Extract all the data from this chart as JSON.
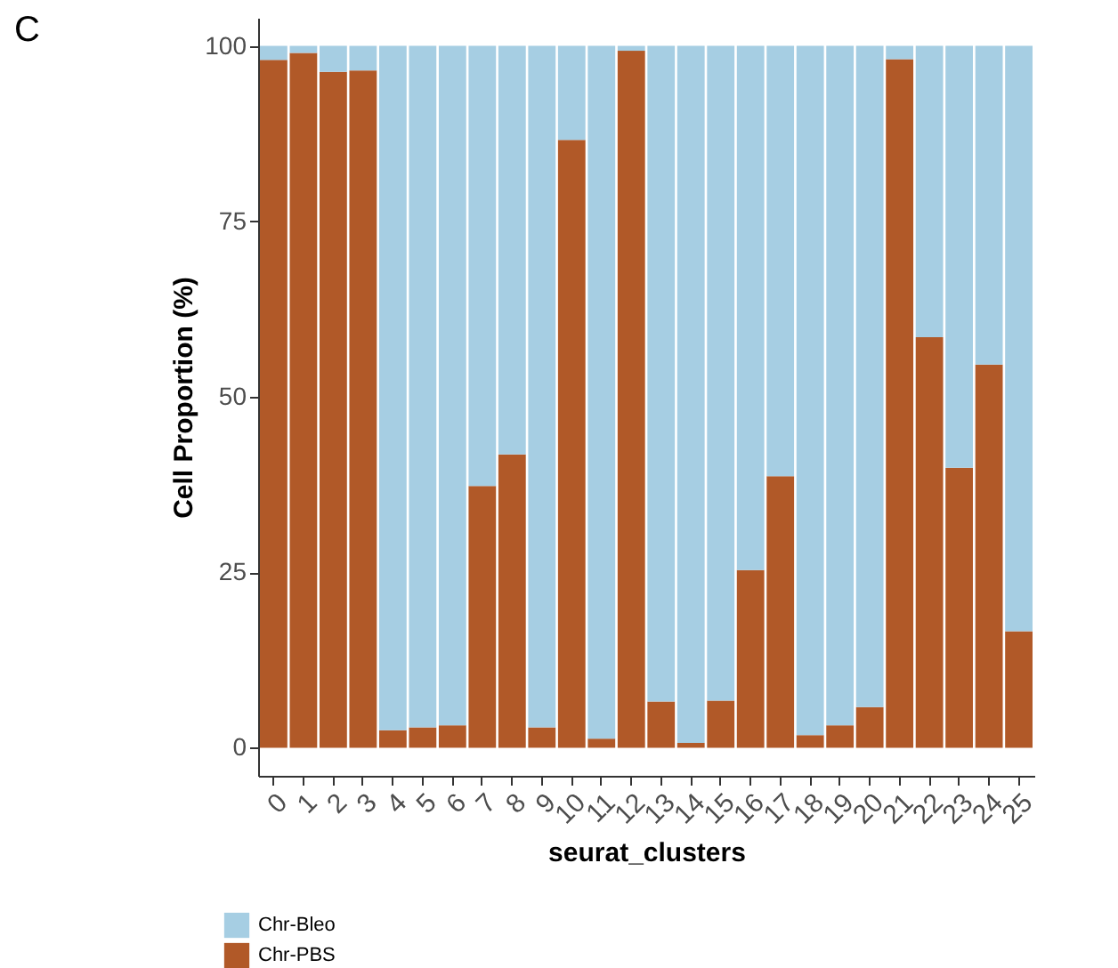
{
  "chart_data": {
    "type": "bar",
    "stacked": true,
    "xlabel": "seurat_clusters",
    "ylabel": "Cell Proportion (%)",
    "annotations": [
      "C"
    ],
    "categories": [
      "0",
      "1",
      "2",
      "3",
      "4",
      "5",
      "6",
      "7",
      "8",
      "9",
      "10",
      "11",
      "12",
      "13",
      "14",
      "15",
      "16",
      "17",
      "18",
      "19",
      "20",
      "21",
      "22",
      "23",
      "24",
      "25"
    ],
    "series": [
      {
        "name": "Chr-PBS",
        "color": "#b15928",
        "values": [
          98,
          99,
          96.3,
          96.5,
          2.5,
          2.9,
          3.2,
          37.3,
          41.8,
          2.9,
          86.6,
          1.3,
          99.3,
          6.6,
          0.7,
          6.7,
          25.3,
          38.7,
          1.8,
          3.2,
          5.8,
          98.1,
          58.5,
          39.9,
          54.6,
          16.6
        ]
      },
      {
        "name": "Chr-Bleo",
        "color": "#a6cee3",
        "values": [
          2,
          1,
          3.7,
          3.5,
          97.5,
          97.1,
          96.8,
          62.7,
          58.2,
          97.1,
          13.4,
          98.7,
          0.7,
          93.4,
          99.3,
          93.3,
          74.7,
          61.3,
          98.2,
          96.8,
          94.2,
          1.9,
          41.5,
          60.1,
          45.4,
          83.4
        ]
      }
    ],
    "ylim": [
      -4,
      104
    ],
    "yticks": [
      0,
      25,
      50,
      75,
      100
    ],
    "grid": false,
    "legend": "bottom left"
  }
}
